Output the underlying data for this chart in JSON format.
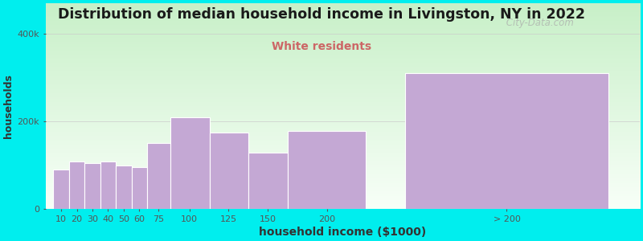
{
  "title": "Distribution of median household income in Livingston, NY in 2022",
  "subtitle": "White residents",
  "xlabel": "household income ($1000)",
  "ylabel": "households",
  "background_color": "#00EEEE",
  "bar_color": "#c4a8d4",
  "bar_edge_color": "#ffffff",
  "values": [
    90000,
    108000,
    105000,
    108000,
    100000,
    95000,
    150000,
    210000,
    175000,
    128000,
    178000,
    310000
  ],
  "bar_widths": [
    10,
    10,
    10,
    10,
    10,
    10,
    15,
    25,
    25,
    25,
    50,
    130
  ],
  "bar_lefts": [
    5,
    15,
    25,
    35,
    45,
    55,
    65,
    80,
    105,
    130,
    155,
    230
  ],
  "xlim": [
    0,
    380
  ],
  "ylim": [
    0,
    470000
  ],
  "yticks": [
    0,
    200000,
    400000
  ],
  "ytick_labels": [
    "0",
    "200k",
    "400k"
  ],
  "title_fontsize": 12.5,
  "subtitle_fontsize": 10,
  "subtitle_color": "#cc6666",
  "watermark": " City-Data.com",
  "xtick_positions": [
    10,
    20,
    30,
    40,
    50,
    60,
    72,
    92,
    117,
    142,
    180,
    295
  ],
  "xtick_labels": [
    "10",
    "20",
    "30",
    "40",
    "50",
    "60",
    "75",
    "100",
    "125",
    "150",
    "200",
    "> 200"
  ]
}
